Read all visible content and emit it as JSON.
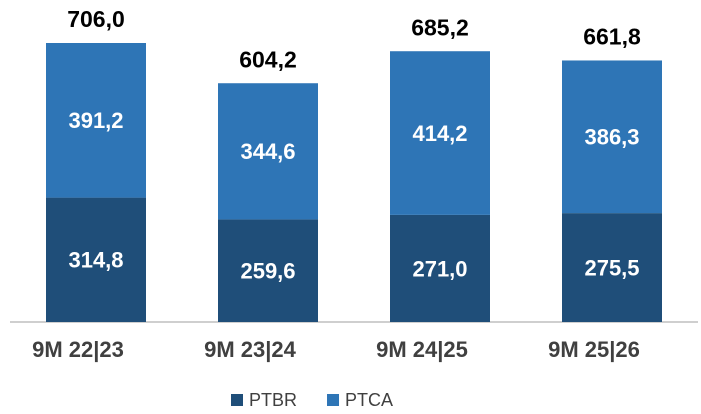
{
  "chart_data": {
    "type": "stacked_bar",
    "categories": [
      "9M 22|23",
      "9M 23|24",
      "9M 24|25",
      "9M 25|26"
    ],
    "series": [
      {
        "name": "PTBR",
        "color": "#1f4e79",
        "values": [
          314.8,
          259.6,
          271.0,
          275.5
        ],
        "value_labels": [
          "314,8",
          "259,6",
          "271,0",
          "275,5"
        ]
      },
      {
        "name": "PTCA",
        "color": "#2e75b6",
        "values": [
          391.2,
          344.6,
          414.2,
          386.3
        ],
        "value_labels": [
          "391,2",
          "344,6",
          "414,2",
          "386,3"
        ]
      }
    ],
    "totals": [
      706.0,
      604.2,
      685.2,
      661.8
    ],
    "total_labels": [
      "706,0",
      "604,2",
      "685,2",
      "661,8"
    ],
    "legend": "bottom"
  }
}
